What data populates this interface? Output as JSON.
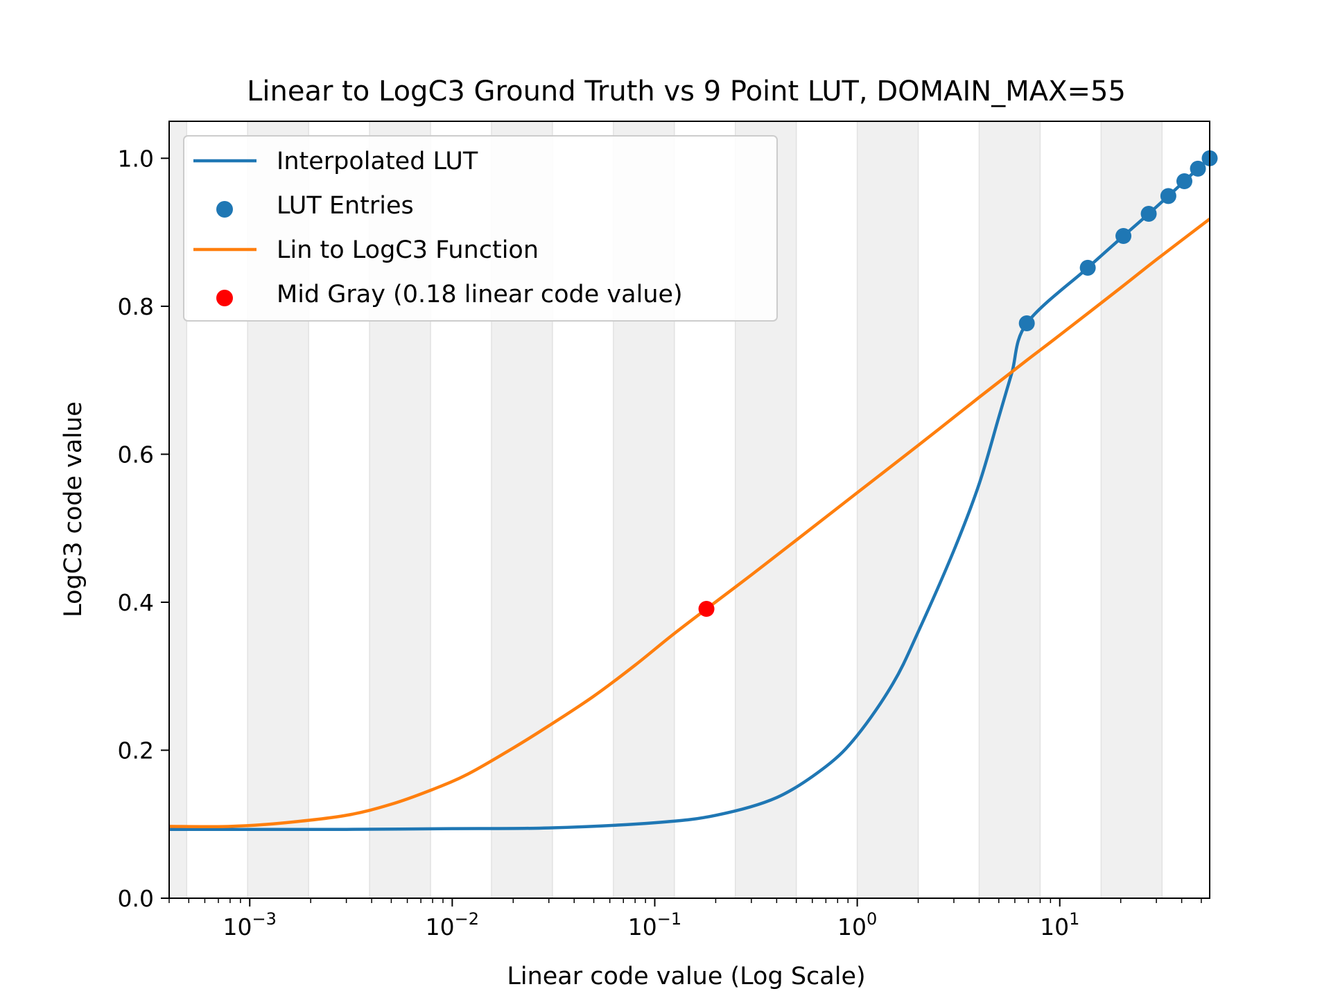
{
  "chart_data": {
    "type": "line",
    "title": "Linear to LogC3 Ground Truth vs 9 Point LUT, DOMAIN_MAX=55",
    "xlabel": "Linear code value (Log Scale)",
    "ylabel": "LogC3 code value",
    "xscale": "log",
    "xlim": [
      0.0004,
      55
    ],
    "ylim": [
      0.0,
      1.05
    ],
    "yticks": [
      "0.0",
      "0.2",
      "0.4",
      "0.6",
      "0.8",
      "1.0"
    ],
    "xticks": [
      {
        "base": "10",
        "exp": "−3"
      },
      {
        "base": "10",
        "exp": "−2"
      },
      {
        "base": "10",
        "exp": "−1"
      },
      {
        "base": "10",
        "exp": "0"
      },
      {
        "base": "10",
        "exp": "1"
      }
    ],
    "grid": false,
    "shaded_bands": true,
    "legend_position": "upper-left",
    "legend": [
      {
        "label": "Interpolated LUT",
        "kind": "line",
        "color": "#1f77b4"
      },
      {
        "label": "LUT Entries",
        "kind": "marker",
        "color": "#1f77b4"
      },
      {
        "label": "Lin to LogC3 Function",
        "kind": "line",
        "color": "#ff7f0e"
      },
      {
        "label": "Mid Gray (0.18 linear code value)",
        "kind": "marker",
        "color": "#ff0000"
      }
    ],
    "series": [
      {
        "name": "Interpolated LUT",
        "color": "#1f77b4",
        "x": [
          0.0004,
          0.001,
          0.003,
          0.01,
          0.03,
          0.1,
          0.2,
          0.4,
          0.7,
          1.0,
          1.5,
          2.0,
          3.0,
          4.0,
          5.0,
          5.8,
          6.875,
          13.75,
          20.625,
          27.5,
          34.375,
          41.25,
          48.125,
          55
        ],
        "y": [
          0.093,
          0.093,
          0.093,
          0.094,
          0.095,
          0.102,
          0.112,
          0.136,
          0.178,
          0.22,
          0.29,
          0.36,
          0.47,
          0.56,
          0.65,
          0.71,
          0.777,
          0.852,
          0.895,
          0.925,
          0.949,
          0.969,
          0.986,
          1.0
        ]
      },
      {
        "name": "Lin to LogC3 Function",
        "color": "#ff7f0e",
        "x": [
          0.0004,
          0.0008,
          0.0015,
          0.003,
          0.005,
          0.008,
          0.012,
          0.02,
          0.03,
          0.05,
          0.08,
          0.12,
          0.18,
          0.3,
          0.5,
          1.0,
          2.0,
          4.0,
          6.875,
          10.0,
          20.0,
          30.0,
          55
        ],
        "y": [
          0.097,
          0.097,
          0.102,
          0.112,
          0.127,
          0.147,
          0.168,
          0.203,
          0.233,
          0.273,
          0.315,
          0.354,
          0.391,
          0.437,
          0.484,
          0.548,
          0.612,
          0.677,
          0.727,
          0.761,
          0.825,
          0.863,
          0.918
        ]
      }
    ],
    "lut_entries": {
      "name": "LUT Entries",
      "color": "#1f77b4",
      "x": [
        6.875,
        13.75,
        20.625,
        27.5,
        34.375,
        41.25,
        48.125,
        55
      ],
      "y": [
        0.777,
        0.852,
        0.895,
        0.925,
        0.949,
        0.969,
        0.986,
        1.0
      ]
    },
    "mid_gray": {
      "name": "Mid Gray (0.18 linear code value)",
      "color": "#ff0000",
      "x": 0.18,
      "y": 0.391
    }
  }
}
